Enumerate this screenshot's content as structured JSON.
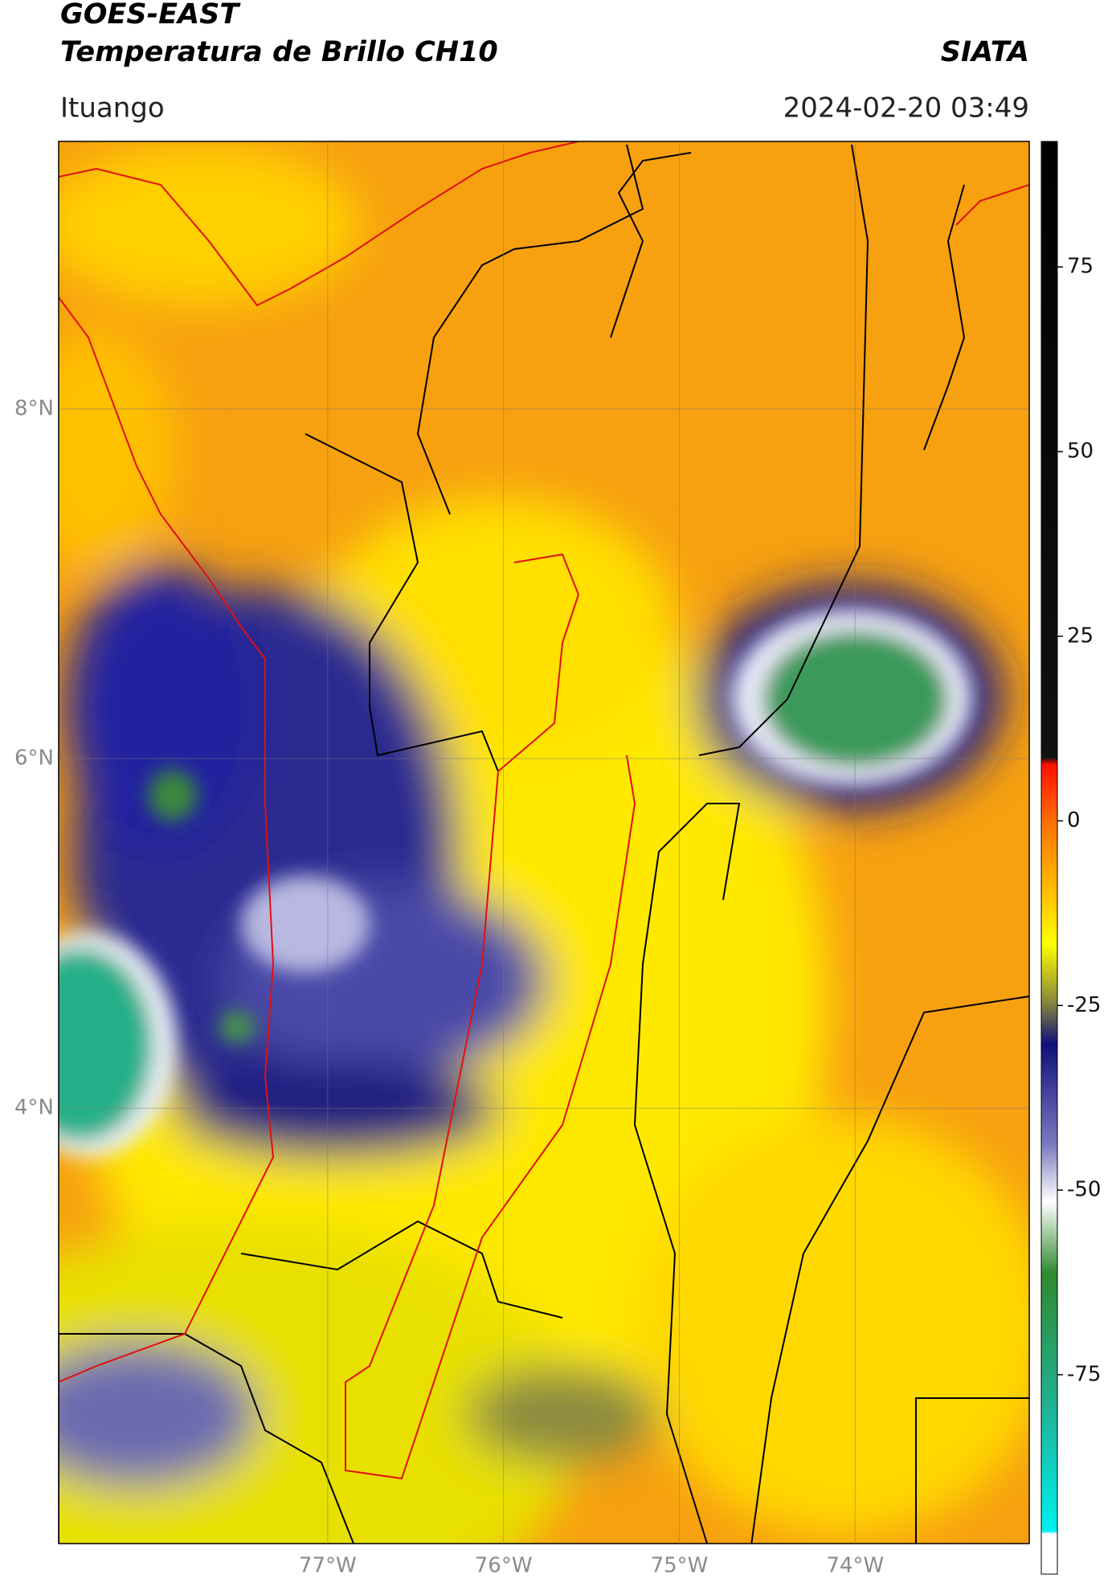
{
  "title": "GOES-EAST",
  "subtitle": "Temperatura de Brillo CH10",
  "brand": "SIATA",
  "location": "Ituango",
  "timestamp": "2024-02-20 03:49",
  "map": {
    "xlim": [
      -78.53,
      -73.01
    ],
    "ylim": [
      1.51,
      9.53
    ],
    "xticks": [
      {
        "value": -77,
        "label": "77°W"
      },
      {
        "value": -76,
        "label": "76°W"
      },
      {
        "value": -75,
        "label": "75°W"
      },
      {
        "value": -74,
        "label": "74°W"
      }
    ],
    "yticks": [
      {
        "value": 4,
        "label": "4°N"
      },
      {
        "value": 6,
        "label": "6°N"
      },
      {
        "value": 8,
        "label": "8°N"
      }
    ],
    "grid": true
  },
  "colorbar": {
    "clim": [
      -102,
      92
    ],
    "ticks": [
      -75,
      -50,
      -25,
      0,
      25,
      50,
      75
    ]
  }
}
